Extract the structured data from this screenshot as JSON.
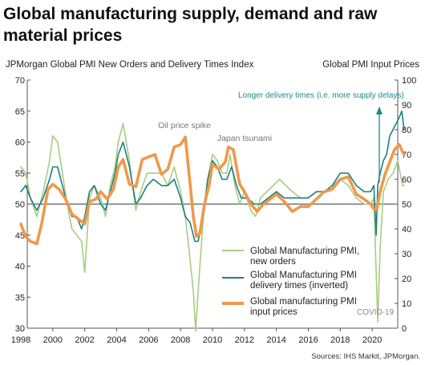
{
  "title": "Global manufacturing supply, demand and raw material prices",
  "source": "Sources: IHS Markit, JPMorgan.",
  "chart_data": {
    "type": "line",
    "y_left_label": "JPMorgan Global PMI New Orders and Delivery Times Index",
    "y_right_label": "Global PMI Input Prices",
    "y_left_range": [
      30,
      70
    ],
    "y_right_range": [
      0,
      100
    ],
    "y_left_ticks": [
      30,
      35,
      40,
      45,
      50,
      55,
      60,
      65,
      70
    ],
    "y_right_ticks": [
      0,
      10,
      20,
      30,
      40,
      50,
      60,
      70,
      80,
      90,
      100
    ],
    "x_range": [
      1998,
      2022
    ],
    "x_ticks": [
      1998,
      2000,
      2002,
      2004,
      2006,
      2008,
      2010,
      2012,
      2014,
      2016,
      2018,
      2020
    ],
    "grid": false,
    "reference_line": 50,
    "legend_position": "bottom-right",
    "legend": [
      "Global Manufacturing PMI, new orders",
      "Global Manufacturing PMI delivery times (inverted)",
      "Global manufacturing PMI input prices"
    ],
    "annotations": {
      "oil": "Oil price spike",
      "japan": "Japan tsunami",
      "delivery": "Longer delivery times (i.e. more supply delays)",
      "covid": "COVID-19"
    },
    "colors": {
      "new_orders": "#a8cc84",
      "delivery": "#1a8080",
      "prices": "#f0984a",
      "axis": "#555555",
      "text": "#333333"
    },
    "series": [
      {
        "name": "Global Manufacturing PMI, new orders",
        "axis": "left",
        "x": [
          1998.0,
          1998.3,
          1998.6,
          1999.0,
          1999.4,
          1999.8,
          2000.0,
          2000.3,
          2000.6,
          2000.9,
          2001.2,
          2001.5,
          2001.8,
          2002.0,
          2002.3,
          2002.6,
          2003.0,
          2003.3,
          2003.6,
          2003.9,
          2004.1,
          2004.4,
          2004.8,
          2005.2,
          2005.5,
          2005.9,
          2006.3,
          2006.8,
          2007.2,
          2007.6,
          2008.0,
          2008.3,
          2008.6,
          2008.8,
          2008.95,
          2009.1,
          2009.4,
          2009.7,
          2010.0,
          2010.3,
          2010.6,
          2010.9,
          2011.1,
          2011.4,
          2011.7,
          2012.0,
          2012.4,
          2012.7,
          2013.0,
          2013.4,
          2013.8,
          2014.2,
          2014.6,
          2015.0,
          2015.5,
          2016.0,
          2016.5,
          2017.0,
          2017.5,
          2018.0,
          2018.5,
          2019.0,
          2019.5,
          2019.9,
          2020.1,
          2020.25,
          2020.35,
          2020.5,
          2020.7,
          2021.0,
          2021.3,
          2021.6,
          2021.9,
          2022.0
        ],
        "values": [
          56,
          55,
          51,
          48,
          52,
          57,
          61,
          60,
          55,
          50,
          46,
          45,
          44,
          39,
          51,
          53,
          51,
          48,
          53,
          56,
          60,
          63,
          57,
          49,
          52,
          55,
          55,
          55,
          53,
          56,
          52,
          48,
          41,
          36,
          29.5,
          36,
          47,
          54,
          58,
          57,
          55,
          55,
          58,
          53,
          50,
          52,
          49,
          48,
          51,
          52,
          53,
          54,
          53,
          52,
          51,
          51,
          52,
          52,
          53,
          54,
          53,
          51,
          50,
          50,
          51,
          39,
          31,
          43,
          52,
          54,
          55,
          57,
          53,
          53
        ]
      },
      {
        "name": "Global Manufacturing PMI delivery times (inverted)",
        "axis": "left",
        "x": [
          1998.0,
          1998.3,
          1998.6,
          1999.0,
          1999.4,
          1999.8,
          2000.0,
          2000.3,
          2000.6,
          2000.9,
          2001.2,
          2001.5,
          2001.8,
          2002.0,
          2002.3,
          2002.6,
          2003.0,
          2003.3,
          2003.6,
          2003.9,
          2004.1,
          2004.4,
          2004.8,
          2005.2,
          2005.5,
          2005.9,
          2006.3,
          2006.8,
          2007.2,
          2007.6,
          2008.0,
          2008.3,
          2008.6,
          2008.9,
          2009.1,
          2009.4,
          2009.7,
          2010.0,
          2010.3,
          2010.6,
          2010.9,
          2011.2,
          2011.5,
          2011.8,
          2012.2,
          2012.6,
          2013.0,
          2013.5,
          2014.0,
          2014.5,
          2015.0,
          2015.5,
          2016.0,
          2016.5,
          2017.0,
          2017.5,
          2018.0,
          2018.5,
          2019.0,
          2019.5,
          2019.9,
          2020.1,
          2020.25,
          2020.35,
          2020.5,
          2020.7,
          2020.9,
          2021.1,
          2021.3,
          2021.5,
          2021.7,
          2021.85,
          2022.0
        ],
        "values": [
          52,
          53,
          51,
          49,
          51,
          54,
          56,
          56,
          53,
          50,
          48,
          48,
          46,
          48,
          52,
          53,
          50,
          49,
          52,
          55,
          58,
          60,
          56,
          50,
          51,
          53,
          54,
          53,
          53,
          54,
          51,
          48,
          47,
          44,
          44,
          48,
          54,
          57,
          56,
          54,
          54,
          56,
          53,
          51,
          51,
          50,
          50,
          51,
          52,
          51,
          51,
          51,
          51,
          52,
          52,
          53,
          55,
          55,
          53,
          52,
          52,
          53,
          45,
          53,
          55,
          57,
          58,
          61,
          62,
          63,
          64,
          65,
          62
        ]
      },
      {
        "name": "Global manufacturing PMI input prices",
        "axis": "right",
        "x": [
          1998.0,
          1998.3,
          1998.6,
          1999.0,
          1999.3,
          1999.7,
          2000.0,
          2000.4,
          2000.8,
          2001.2,
          2001.6,
          2002.0,
          2002.3,
          2002.7,
          2003.0,
          2003.4,
          2003.8,
          2004.1,
          2004.4,
          2004.8,
          2005.2,
          2005.6,
          2006.0,
          2006.4,
          2006.8,
          2007.2,
          2007.6,
          2008.0,
          2008.3,
          2008.6,
          2008.8,
          2009.0,
          2009.2,
          2009.5,
          2009.8,
          2010.0,
          2010.4,
          2010.8,
          2011.0,
          2011.3,
          2011.7,
          2012.0,
          2012.4,
          2012.8,
          2013.2,
          2013.6,
          2014.0,
          2014.5,
          2015.0,
          2015.5,
          2016.0,
          2016.5,
          2017.0,
          2017.5,
          2018.0,
          2018.5,
          2019.0,
          2019.5,
          2019.9,
          2020.1,
          2020.3,
          2020.5,
          2020.8,
          2021.1,
          2021.4,
          2021.7,
          2021.9,
          2022.0
        ],
        "values": [
          42,
          37,
          35,
          34,
          42,
          56,
          58,
          56,
          52,
          46,
          44,
          42,
          51,
          52,
          55,
          52,
          56,
          65,
          68,
          58,
          57,
          68,
          69,
          70,
          62,
          64,
          73,
          74,
          77,
          58,
          45,
          37,
          38,
          50,
          58,
          66,
          64,
          67,
          73,
          72,
          58,
          55,
          50,
          47,
          50,
          52,
          54,
          51,
          47,
          49,
          49,
          52,
          55,
          56,
          60,
          61,
          54,
          52,
          50,
          48,
          48,
          55,
          62,
          67,
          72,
          74,
          71,
          70
        ]
      }
    ]
  }
}
